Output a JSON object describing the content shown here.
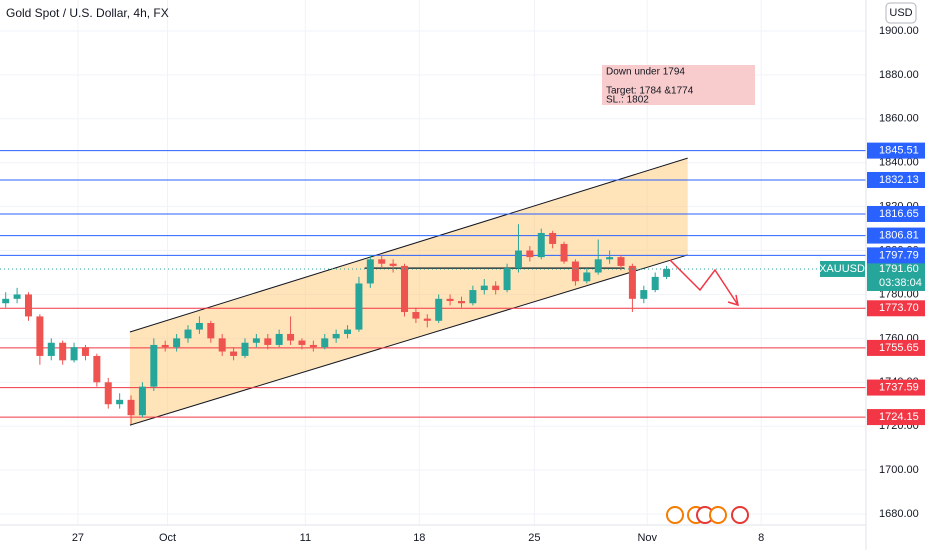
{
  "chart_data": {
    "type": "candlestick",
    "title": "Gold Spot / U.S. Dollar, 4h, FX",
    "currency": "USD",
    "symbol": "XAUUSD",
    "countdown": "03:38:04",
    "current_price": {
      "value": 1791.6,
      "label": "1791.60"
    },
    "xlim": [
      0,
      76
    ],
    "xticks": [
      {
        "value": 6.84,
        "label": "27"
      },
      {
        "value": 14.7,
        "label": "Oct"
      },
      {
        "value": 26.8,
        "label": "11"
      },
      {
        "value": 36.8,
        "label": "18"
      },
      {
        "value": 46.9,
        "label": "25"
      },
      {
        "value": 56.8,
        "label": "Nov"
      },
      {
        "value": 66.8,
        "label": "8"
      }
    ],
    "ylim": [
      1675,
      1914.1
    ],
    "yticks": [
      {
        "value": 1680,
        "label": "1680.00"
      },
      {
        "value": 1700,
        "label": "1700.00"
      },
      {
        "value": 1720,
        "label": "1720.00"
      },
      {
        "value": 1740,
        "label": "1740.00"
      },
      {
        "value": 1760,
        "label": "1760.00"
      },
      {
        "value": 1780,
        "label": "1780.00"
      },
      {
        "value": 1800,
        "label": "1800.00"
      },
      {
        "value": 1820,
        "label": "1820.00"
      },
      {
        "value": 1840,
        "label": "1840.00"
      },
      {
        "value": 1860,
        "label": "1860.00"
      },
      {
        "value": 1880,
        "label": "1880.00"
      },
      {
        "value": 1900,
        "label": "1900.00"
      }
    ],
    "up_color": "#26a69a",
    "down_color": "#ef5350",
    "close": [
      1778,
      1780,
      1770,
      1752,
      1758,
      1750,
      1756,
      1752,
      1740,
      1730,
      1732,
      1725,
      1738,
      1757,
      1756,
      1760,
      1764,
      1767,
      1760,
      1754,
      1752,
      1758,
      1760,
      1757,
      1762,
      1759,
      1757,
      1756,
      1760,
      1762,
      1764,
      1785,
      1796,
      1794,
      1793,
      1772,
      1769,
      1768,
      1778,
      1777,
      1776,
      1782,
      1784,
      1782,
      1792,
      1800,
      1797,
      1808,
      1803,
      1795,
      1786,
      1790,
      1796,
      1797,
      1793,
      1778,
      1782,
      1788,
      1791.6
    ],
    "open": [
      1776,
      1778,
      1780,
      1770,
      1752,
      1758,
      1750,
      1756,
      1752,
      1740,
      1730,
      1732,
      1725,
      1738,
      1757,
      1756,
      1760,
      1764,
      1767,
      1760,
      1754,
      1752,
      1758,
      1760,
      1757,
      1762,
      1759,
      1757,
      1756,
      1760,
      1762,
      1764,
      1785,
      1796,
      1794,
      1793,
      1772,
      1769,
      1768,
      1778,
      1777,
      1776,
      1782,
      1784,
      1782,
      1792,
      1800,
      1797,
      1808,
      1803,
      1795,
      1786,
      1790,
      1796,
      1797,
      1793,
      1778,
      1782,
      1788
    ],
    "high": [
      1781,
      1783,
      1781,
      1771,
      1760,
      1759,
      1758,
      1757,
      1753,
      1742,
      1735,
      1734,
      1740,
      1760,
      1759,
      1762,
      1766,
      1770,
      1768,
      1762,
      1756,
      1760,
      1762,
      1762,
      1764,
      1770,
      1760,
      1759,
      1762,
      1764,
      1766,
      1788,
      1798,
      1798,
      1796,
      1794,
      1774,
      1771,
      1780,
      1780,
      1779,
      1784,
      1787,
      1786,
      1794,
      1812,
      1802,
      1810,
      1809,
      1804,
      1796,
      1792,
      1805,
      1800,
      1798,
      1794,
      1784,
      1790,
      1793
    ],
    "low": [
      1774,
      1776,
      1768,
      1748,
      1750,
      1748,
      1749,
      1750,
      1738,
      1728,
      1728,
      1721,
      1724,
      1736,
      1754,
      1754,
      1758,
      1762,
      1758,
      1752,
      1750,
      1751,
      1756,
      1755,
      1756,
      1757,
      1755,
      1754,
      1755,
      1758,
      1760,
      1763,
      1783,
      1792,
      1790,
      1770,
      1767,
      1765,
      1767,
      1775,
      1774,
      1775,
      1780,
      1780,
      1781,
      1790,
      1795,
      1796,
      1801,
      1794,
      1784,
      1785,
      1789,
      1794,
      1791,
      1772,
      1776,
      1781,
      1787
    ],
    "levels": [
      {
        "value": 1845.51,
        "label": "1845.51",
        "color": "#2962ff"
      },
      {
        "value": 1832.13,
        "label": "1832.13",
        "color": "#2962ff"
      },
      {
        "value": 1816.65,
        "label": "1816.65",
        "color": "#2962ff"
      },
      {
        "value": 1806.81,
        "label": "1806.81",
        "color": "#2962ff"
      },
      {
        "value": 1797.79,
        "label": "1797.79",
        "color": "#2962ff"
      },
      {
        "value": 1773.7,
        "label": "1773.70",
        "color": "#f23645"
      },
      {
        "value": 1755.65,
        "label": "1755.65",
        "color": "#f23645"
      },
      {
        "value": 1737.59,
        "label": "1737.59",
        "color": "#f23645"
      },
      {
        "value": 1724.15,
        "label": "1724.15",
        "color": "#f23645"
      }
    ],
    "channel": {
      "lower": [
        [
          11.4,
          1720.5
        ],
        [
          60.35,
          1798
        ]
      ],
      "upper": [
        [
          11.4,
          1762.9
        ],
        [
          60.35,
          1842.1
        ]
      ],
      "color": "#ffcc80"
    },
    "support_segment": [
      [
        32,
        1792
      ],
      [
        54.8,
        1792
      ]
    ],
    "note": {
      "lines": [
        "Down under 1794",
        "Target: 1784 &1774",
        "SL.: 1802"
      ]
    }
  }
}
